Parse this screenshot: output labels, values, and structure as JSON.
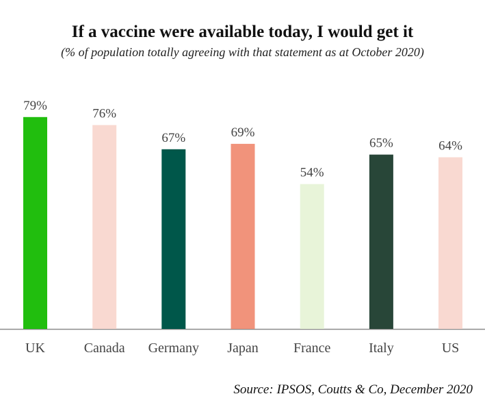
{
  "chart_data": {
    "type": "bar",
    "title": "If a vaccine were available today, I would get it",
    "subtitle": "(% of population totally agreeing with that statement as at October 2020)",
    "categories": [
      "UK",
      "Canada",
      "Germany",
      "Japan",
      "France",
      "Italy",
      "US"
    ],
    "values": [
      79,
      76,
      67,
      69,
      54,
      65,
      64
    ],
    "value_labels": [
      "79%",
      "76%",
      "67%",
      "69%",
      "54%",
      "65%",
      "64%"
    ],
    "colors": [
      "#21be0e",
      "#f9d9d1",
      "#00574a",
      "#f1937b",
      "#e8f4d9",
      "#284638",
      "#f9d9d1"
    ],
    "ylim": [
      0,
      100
    ],
    "grid": false,
    "legend": "none",
    "source": "Source: IPSOS, Coutts & Co, December 2020"
  }
}
